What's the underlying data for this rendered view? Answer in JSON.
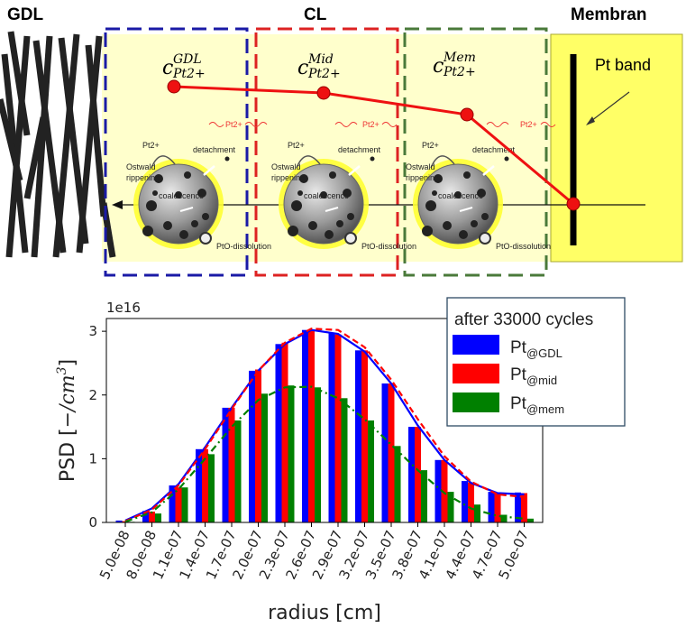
{
  "header": {
    "gdl": "GDL",
    "cl": "CL",
    "membrane": "Membran"
  },
  "schematic": {
    "c_gdl": {
      "base": "c",
      "sup": "GDL",
      "sub": "Pt2+"
    },
    "c_mid": {
      "base": "c",
      "sup": "Mid",
      "sub": "Pt2+"
    },
    "c_mem": {
      "base": "c",
      "sup": "Mem",
      "sub": "Pt2+"
    },
    "pt_band_label": "Pt band",
    "pt2_flow_label": "Pt2+",
    "particle_labels": {
      "pt2": "Pt2+",
      "detachment": "detachment",
      "ostwald": "Ostwald",
      "ripening": "rippening",
      "coalescence": "coalescence",
      "dissolution": "PtO-dissolution"
    },
    "colors": {
      "gdl_box": "#1a1aa6",
      "mid_box": "#dd2222",
      "mem_box": "#4a7a3a",
      "cl_fill": "#ffffcc",
      "membrane_fill": "#ffff66",
      "profile_line": "#ee1111"
    }
  },
  "legend": {
    "title": "after 33000 cycles",
    "items": [
      {
        "base": "Pt",
        "sub": "@GDL",
        "color": "#0000ff"
      },
      {
        "base": "Pt",
        "sub": "@mid",
        "color": "#ff0000"
      },
      {
        "base": "Pt",
        "sub": "@mem",
        "color": "#008000"
      }
    ]
  },
  "chart_data": {
    "type": "bar",
    "xlabel": "radius [cm]",
    "ylabel_main": "PSD [",
    "ylabel_math": "−/cm",
    "ylabel_sup": "3",
    "ylabel_end": "]",
    "scale_label": "1e16",
    "categories": [
      "5.0e-08",
      "8.0e-08",
      "1.1e-07",
      "1.4e-07",
      "1.7e-07",
      "2.0e-07",
      "2.3e-07",
      "2.6e-07",
      "2.9e-07",
      "3.2e-07",
      "3.5e-07",
      "3.8e-07",
      "4.1e-07",
      "4.4e-07",
      "4.7e-07",
      "5.0e-07"
    ],
    "yticks": [
      "0",
      "1",
      "2",
      "3"
    ],
    "ylim": [
      0,
      3.2
    ],
    "bar_series": [
      {
        "name": "Pt@GDL",
        "color": "#0000ff",
        "values": [
          0.03,
          0.18,
          0.58,
          1.15,
          1.8,
          2.38,
          2.8,
          3.02,
          2.98,
          2.7,
          2.18,
          1.5,
          0.98,
          0.65,
          0.48,
          0.47
        ]
      },
      {
        "name": "Pt@mid",
        "color": "#ff0000",
        "values": [
          0.02,
          0.17,
          0.55,
          1.15,
          1.8,
          2.4,
          2.82,
          3.02,
          2.95,
          2.7,
          2.18,
          1.5,
          0.98,
          0.63,
          0.47,
          0.46
        ]
      },
      {
        "name": "Pt@mem",
        "color": "#008000",
        "values": [
          0.01,
          0.14,
          0.55,
          1.07,
          1.6,
          2.02,
          2.15,
          2.12,
          1.95,
          1.6,
          1.2,
          0.82,
          0.48,
          0.28,
          0.12,
          0.06
        ]
      }
    ],
    "fit_lines": [
      {
        "style": "solid",
        "color": "#0000ff",
        "values": [
          0.03,
          0.22,
          0.6,
          1.18,
          1.8,
          2.38,
          2.8,
          3.02,
          2.96,
          2.68,
          2.18,
          1.52,
          0.98,
          0.62,
          0.46,
          0.44
        ]
      },
      {
        "style": "dashed",
        "color": "#ff0000",
        "values": [
          0.02,
          0.2,
          0.58,
          1.15,
          1.78,
          2.38,
          2.82,
          3.04,
          3.02,
          2.75,
          2.24,
          1.62,
          1.04,
          0.64,
          0.44,
          0.4
        ]
      },
      {
        "style": "dashdot",
        "color": "#008000",
        "values": [
          0.01,
          0.16,
          0.52,
          1.0,
          1.5,
          1.92,
          2.12,
          2.13,
          1.95,
          1.62,
          1.22,
          0.82,
          0.46,
          0.22,
          0.1,
          0.06
        ]
      }
    ]
  }
}
